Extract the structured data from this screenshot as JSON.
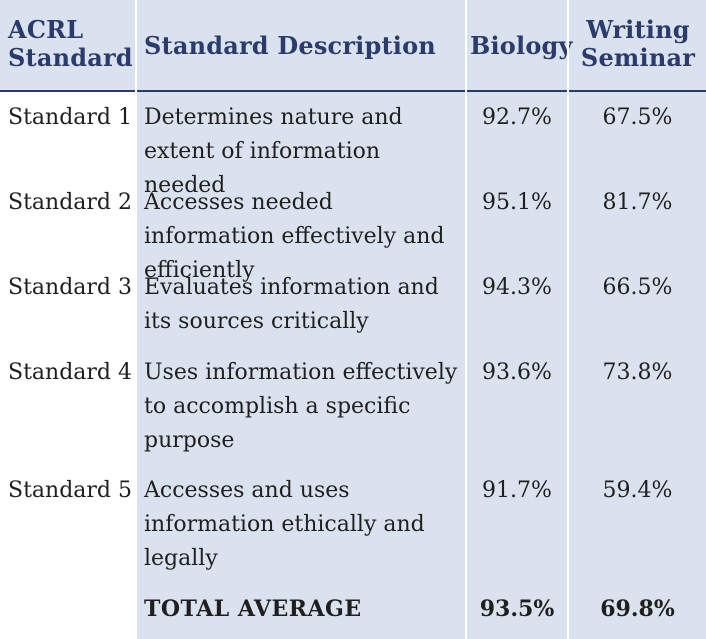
{
  "table": {
    "headers": {
      "acrl": "ACRL Standard",
      "description": "Standard Description",
      "biology": "Biology",
      "writing_seminar": "Writing Seminar"
    },
    "rows": [
      {
        "standard": "Standard 1",
        "description": "Determines nature and extent of information needed",
        "biology": "92.7%",
        "writing_seminar": "67.5%"
      },
      {
        "standard": "Standard 2",
        "description": "Accesses needed information effectively and efficiently",
        "biology": "95.1%",
        "writing_seminar": "81.7%"
      },
      {
        "standard": "Standard 3",
        "description": "Evaluates information and its sources critically",
        "biology": "94.3%",
        "writing_seminar": "66.5%"
      },
      {
        "standard": "Standard 4",
        "description": "Uses information effectively to accomplish a specific purpose",
        "biology": "93.6%",
        "writing_seminar": "73.8%"
      },
      {
        "standard": "Standard 5",
        "description": "Accesses and uses information ethically and legally",
        "biology": "91.7%",
        "writing_seminar": "59.4%"
      }
    ],
    "total": {
      "label": "TOTAL AVERAGE",
      "biology": "93.5%",
      "writing_seminar": "69.8%"
    }
  }
}
